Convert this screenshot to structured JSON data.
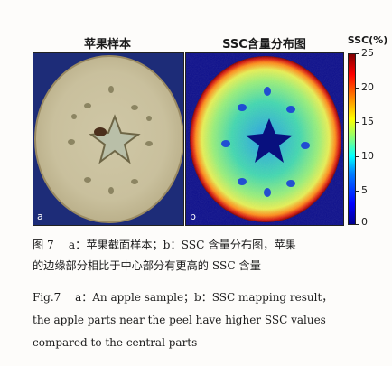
{
  "panel_a": {
    "title": "苹果样本",
    "letter": "a"
  },
  "panel_b": {
    "title": "SSC含量分布图",
    "letter": "b"
  },
  "colorbar": {
    "title": "SSC(%)",
    "ticks": [
      "25",
      "20",
      "15",
      "10",
      "5",
      "0"
    ],
    "range": [
      0,
      25
    ],
    "colors": [
      "#00008f",
      "#0000ff",
      "#00ffff",
      "#ffff00",
      "#ff0000",
      "#800000"
    ]
  },
  "caption": {
    "line1": "图 7　 a：苹果截面样本；b：SSC 含量分布图，苹果",
    "line2": "的边缘部分相比于中心部分有更高的 SSC 含量",
    "line3": "Fig.7　 a：An apple sample；b：SSC mapping result，",
    "line4": "the apple parts near the peel have higher SSC values",
    "line5": "compared to the central parts"
  }
}
